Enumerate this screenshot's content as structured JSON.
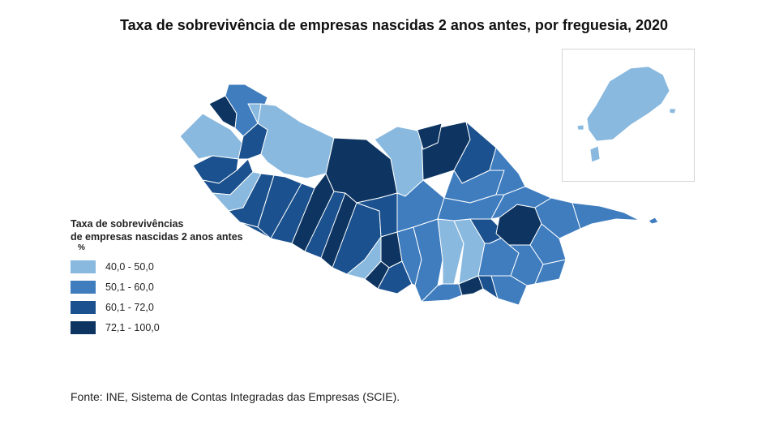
{
  "title": "Taxa de sobrevivência de empresas nascidas 2 anos antes, por freguesia, 2020",
  "legend": {
    "title_line1": "Taxa de sobrevivências",
    "title_line2": "de empresas nascidas 2 anos antes",
    "unit": "%",
    "classes": [
      {
        "label": "40,0 - 50,0",
        "color": "#89b9df"
      },
      {
        "label": "50,1 - 60,0",
        "color": "#3f7dbf"
      },
      {
        "label": "60,1 - 72,0",
        "color": "#1a518e"
      },
      {
        "label": "72,1 - 100,0",
        "color": "#0e3561"
      }
    ]
  },
  "source": "Fonte: INE, Sistema de Contas Integradas das Empresas (SCIE).",
  "colors": {
    "border": "#ffffff",
    "inset_frame": "#d4d4d4"
  }
}
